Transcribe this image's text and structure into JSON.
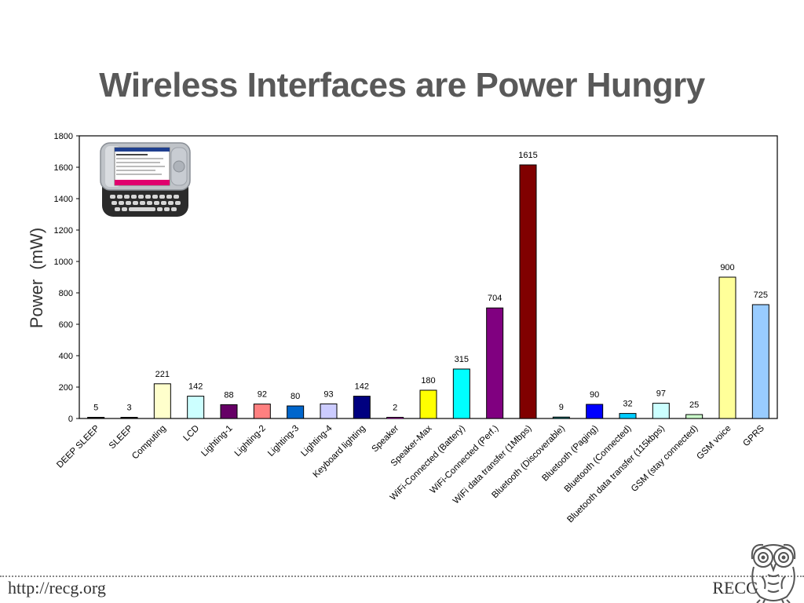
{
  "slide": {
    "title": "Wireless Interfaces are Power Hungry"
  },
  "footer": {
    "url": "http://recg.org",
    "org": "RECG"
  },
  "images": {
    "phone": "pda-phone-with-keyboard-icon",
    "logo": "owl-logo-icon"
  },
  "chart_data": {
    "type": "bar",
    "ylabel": "Power  (mW)",
    "xlabel": "",
    "ylim": [
      0,
      1800
    ],
    "yticks": [
      0,
      200,
      400,
      600,
      800,
      1000,
      1200,
      1400,
      1600,
      1800
    ],
    "grid": false,
    "categories": [
      "DEEP SLEEP",
      "SLEEP",
      "Computing",
      "LCD",
      "Lighting-1",
      "Lighting-2",
      "Lighting-3",
      "Lighting-4",
      "Keyboard lighting",
      "Speaker",
      "Speaker-Max",
      "WiFi-Connected (Battery)",
      "WiFi-Connected (Perf.)",
      "WiFi data transfer (1Mbps)",
      "Bluetooth (Discoverable)",
      "Bluetooth (Paging)",
      "Bluetooth (Connected)",
      "Bluetooth data transfer (115kbps)",
      "GSM (stay connected)",
      "GSM voice",
      "GPRS"
    ],
    "values": [
      5,
      3,
      221,
      142,
      88,
      92,
      80,
      93,
      142,
      2,
      180,
      315,
      704,
      1615,
      9,
      90,
      32,
      97,
      25,
      900,
      725
    ],
    "colors": [
      "#1a1a1a",
      "#1a1a1a",
      "#ffffcc",
      "#ccffff",
      "#660066",
      "#ff8080",
      "#0066cc",
      "#ccccff",
      "#000080",
      "#ff00ff",
      "#ffff00",
      "#00ffff",
      "#800080",
      "#800000",
      "#008080",
      "#0000ff",
      "#00ccff",
      "#ccffff",
      "#ccffcc",
      "#ffff99",
      "#99ccff"
    ]
  }
}
